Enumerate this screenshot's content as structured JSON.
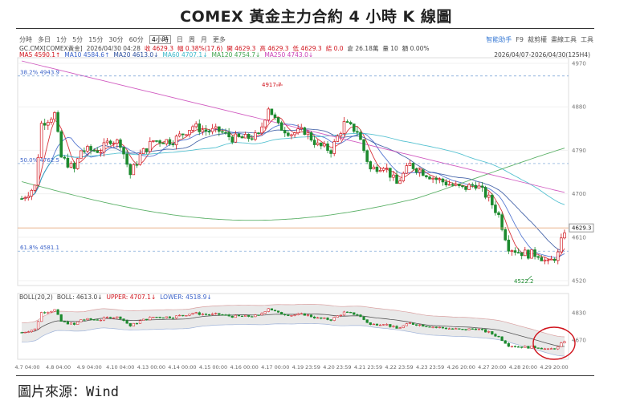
{
  "title": "COMEX 黃金主力合約 4 小時 K 線圖",
  "source": "圖片來源：Wind",
  "toolbar": {
    "periods": [
      "分時",
      "多日",
      "1分",
      "5分",
      "15分",
      "30分",
      "60分",
      "4小時",
      "日",
      "周",
      "月",
      "更多"
    ],
    "active_period": "4小時",
    "right": [
      "智能助手",
      "F9",
      "裁剪權",
      "畫線工具",
      "工具"
    ]
  },
  "info": {
    "symbol": "GC.CMX[COMEX黃金]",
    "datetime": "2026/04/30 04:28",
    "fields": [
      {
        "label": "收",
        "value": "4629.3",
        "color": "#d0121b"
      },
      {
        "label": "幅",
        "value": "0.38%(17.6)",
        "color": "#d0121b"
      },
      {
        "label": "開",
        "value": "4629.3",
        "color": "#d0121b"
      },
      {
        "label": "高",
        "value": "4629.3",
        "color": "#d0121b"
      },
      {
        "label": "低",
        "value": "4629.3",
        "color": "#d0121b"
      },
      {
        "label": "結",
        "value": "0.0",
        "color": "#d0121b"
      },
      {
        "label": "倉",
        "value": "26.18萬",
        "color": "#444444"
      },
      {
        "label": "量",
        "value": "10",
        "color": "#444444"
      },
      {
        "label": "額",
        "value": "0.00%",
        "color": "#444444"
      }
    ],
    "range": "2026/04/07-2026/04/30(125H4)"
  },
  "ma_legend": [
    {
      "label": "MA5",
      "value": "4590.1↑",
      "color": "#d0121b"
    },
    {
      "label": "MA10",
      "value": "4584.6↑",
      "color": "#3a62c9"
    },
    {
      "label": "MA20",
      "value": "4613.0↓",
      "color": "#2a4d9c"
    },
    {
      "label": "MA60",
      "value": "4707.1↓",
      "color": "#39b7c9"
    },
    {
      "label": "MA120",
      "value": "4754.7↓",
      "color": "#3fa34d"
    },
    {
      "label": "MA250",
      "value": "4743.0↓",
      "color": "#c93fb6"
    }
  ],
  "boll_legend": {
    "label": "BOLL(20,2)",
    "boll": "BOLL: 4613.0↓",
    "upper": "UPPER: 4707.1↓",
    "lower": "LOWER: 4518.9↓",
    "colors": {
      "boll": "#444444",
      "upper": "#d0121b",
      "lower": "#3a62c9"
    }
  },
  "fib_labels": [
    {
      "text": "38.2%  4943.9",
      "y": 4943.9
    },
    {
      "text": "50.0%  4762.5",
      "y": 4762.5
    },
    {
      "text": "61.8%  4581.1",
      "y": 4581.1
    }
  ],
  "peak_label": "4917.7",
  "trough_label": "4522.2",
  "last_price_label": "4629.3",
  "chart_data": {
    "type": "candlestick",
    "title": "COMEX 黃金主力合約 4 小時 K 線圖",
    "y_axis_ticks": [
      4970,
      4880,
      4790,
      4700,
      4610,
      4520
    ],
    "lower_y_axis_ticks": [
      4830,
      4670
    ],
    "ylim": [
      4510,
      4975
    ],
    "x_labels": [
      "4.7 04:00",
      "4.8 04:00",
      "4.9 04:00",
      "4.10 04:00",
      "4.13 00:00",
      "4.14 00:00",
      "4.15 00:00",
      "4.16 00:00",
      "4.17 00:00",
      "4.19 23:59",
      "4.20 23:59",
      "4.21 23:59",
      "4.22 23:59",
      "4.23 23:59",
      "4.26 20:00",
      "4.27 20:00",
      "4.28 20:00",
      "4.29 20:00"
    ],
    "series": [
      {
        "name": "MA5",
        "color": "#d0121b"
      },
      {
        "name": "MA10",
        "color": "#3a62c9"
      },
      {
        "name": "MA20",
        "color": "#2a4d9c"
      },
      {
        "name": "MA60",
        "color": "#39b7c9"
      },
      {
        "name": "MA120",
        "color": "#3fa34d"
      },
      {
        "name": "MA250",
        "color": "#c93fb6"
      }
    ],
    "up_color": "#d0121b",
    "down_color": "#1c8a2e",
    "close_waypoints": [
      [
        0,
        4690
      ],
      [
        4,
        4715
      ],
      [
        6,
        4845
      ],
      [
        10,
        4865
      ],
      [
        12,
        4775
      ],
      [
        16,
        4750
      ],
      [
        18,
        4790
      ],
      [
        24,
        4790
      ],
      [
        27,
        4812
      ],
      [
        30,
        4805
      ],
      [
        33,
        4740
      ],
      [
        36,
        4780
      ],
      [
        40,
        4810
      ],
      [
        46,
        4810
      ],
      [
        52,
        4840
      ],
      [
        56,
        4830
      ],
      [
        60,
        4830
      ],
      [
        64,
        4815
      ],
      [
        68,
        4815
      ],
      [
        72,
        4820
      ],
      [
        75,
        4880
      ],
      [
        78,
        4840
      ],
      [
        82,
        4825
      ],
      [
        86,
        4830
      ],
      [
        90,
        4800
      ],
      [
        94,
        4790
      ],
      [
        98,
        4845
      ],
      [
        102,
        4830
      ],
      [
        106,
        4750
      ],
      [
        110,
        4760
      ],
      [
        114,
        4720
      ],
      [
        118,
        4760
      ],
      [
        122,
        4745
      ],
      [
        126,
        4730
      ],
      [
        130,
        4720
      ],
      [
        134,
        4710
      ],
      [
        138,
        4720
      ],
      [
        142,
        4690
      ],
      [
        145,
        4655
      ],
      [
        148,
        4590
      ],
      [
        151,
        4580
      ],
      [
        154,
        4575
      ],
      [
        157,
        4575
      ],
      [
        160,
        4555
      ],
      [
        163,
        4575
      ],
      [
        165,
        4625
      ]
    ],
    "boll_band": {
      "upper_offset": 75,
      "lower_offset": 75
    }
  }
}
